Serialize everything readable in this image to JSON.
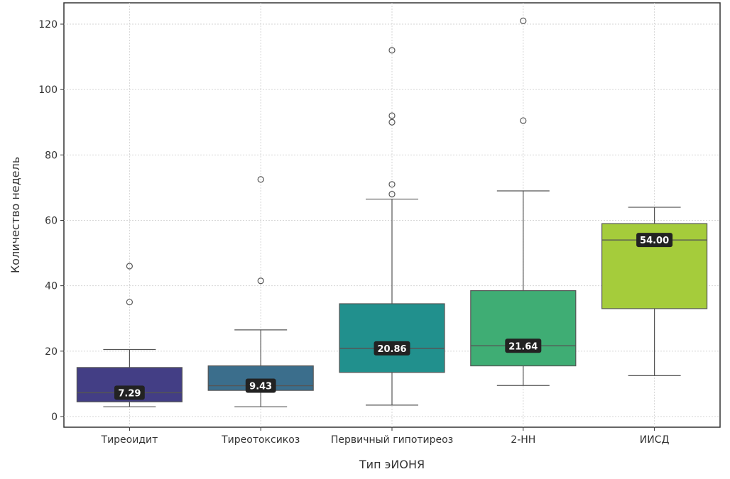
{
  "chart_data": {
    "type": "box",
    "xlabel": "Тип эИОНЯ",
    "ylabel": "Количество недель",
    "ylim": [
      -3,
      126
    ],
    "yticks": [
      0,
      20,
      40,
      60,
      80,
      100,
      120
    ],
    "grid": true,
    "categories": [
      "Тиреоидит",
      "Тиреотоксикоз",
      "Первичный гипотиреоз",
      "2-НН",
      "ИИСД"
    ],
    "boxes": [
      {
        "category": "Тиреоидит",
        "whisker_low": 3,
        "q1": 4.5,
        "median": 7.29,
        "q3": 15,
        "whisker_high": 20.5,
        "outliers": [
          35,
          46
        ],
        "color": "#433e85",
        "label": "7.29"
      },
      {
        "category": "Тиреотоксикоз",
        "whisker_low": 3,
        "q1": 8,
        "median": 9.43,
        "q3": 15.5,
        "whisker_high": 26.5,
        "outliers": [
          41.5,
          72.5
        ],
        "color": "#3b6e8c",
        "label": "9.43"
      },
      {
        "category": "Первичный гипотиреоз",
        "whisker_low": 3.5,
        "q1": 13.5,
        "median": 20.86,
        "q3": 34.5,
        "whisker_high": 66.5,
        "outliers": [
          68,
          71,
          90,
          92,
          112
        ],
        "color": "#21908d",
        "label": "20.86"
      },
      {
        "category": "2-НН",
        "whisker_low": 9.5,
        "q1": 15.5,
        "median": 21.64,
        "q3": 38.5,
        "whisker_high": 69,
        "outliers": [
          90.5,
          121
        ],
        "color": "#3fad74",
        "label": "21.64"
      },
      {
        "category": "ИИСД",
        "whisker_low": 12.5,
        "q1": 33,
        "median": 54.0,
        "q3": 59,
        "whisker_high": 64,
        "outliers": [],
        "color": "#a5cc3b",
        "label": "54.00"
      }
    ]
  }
}
